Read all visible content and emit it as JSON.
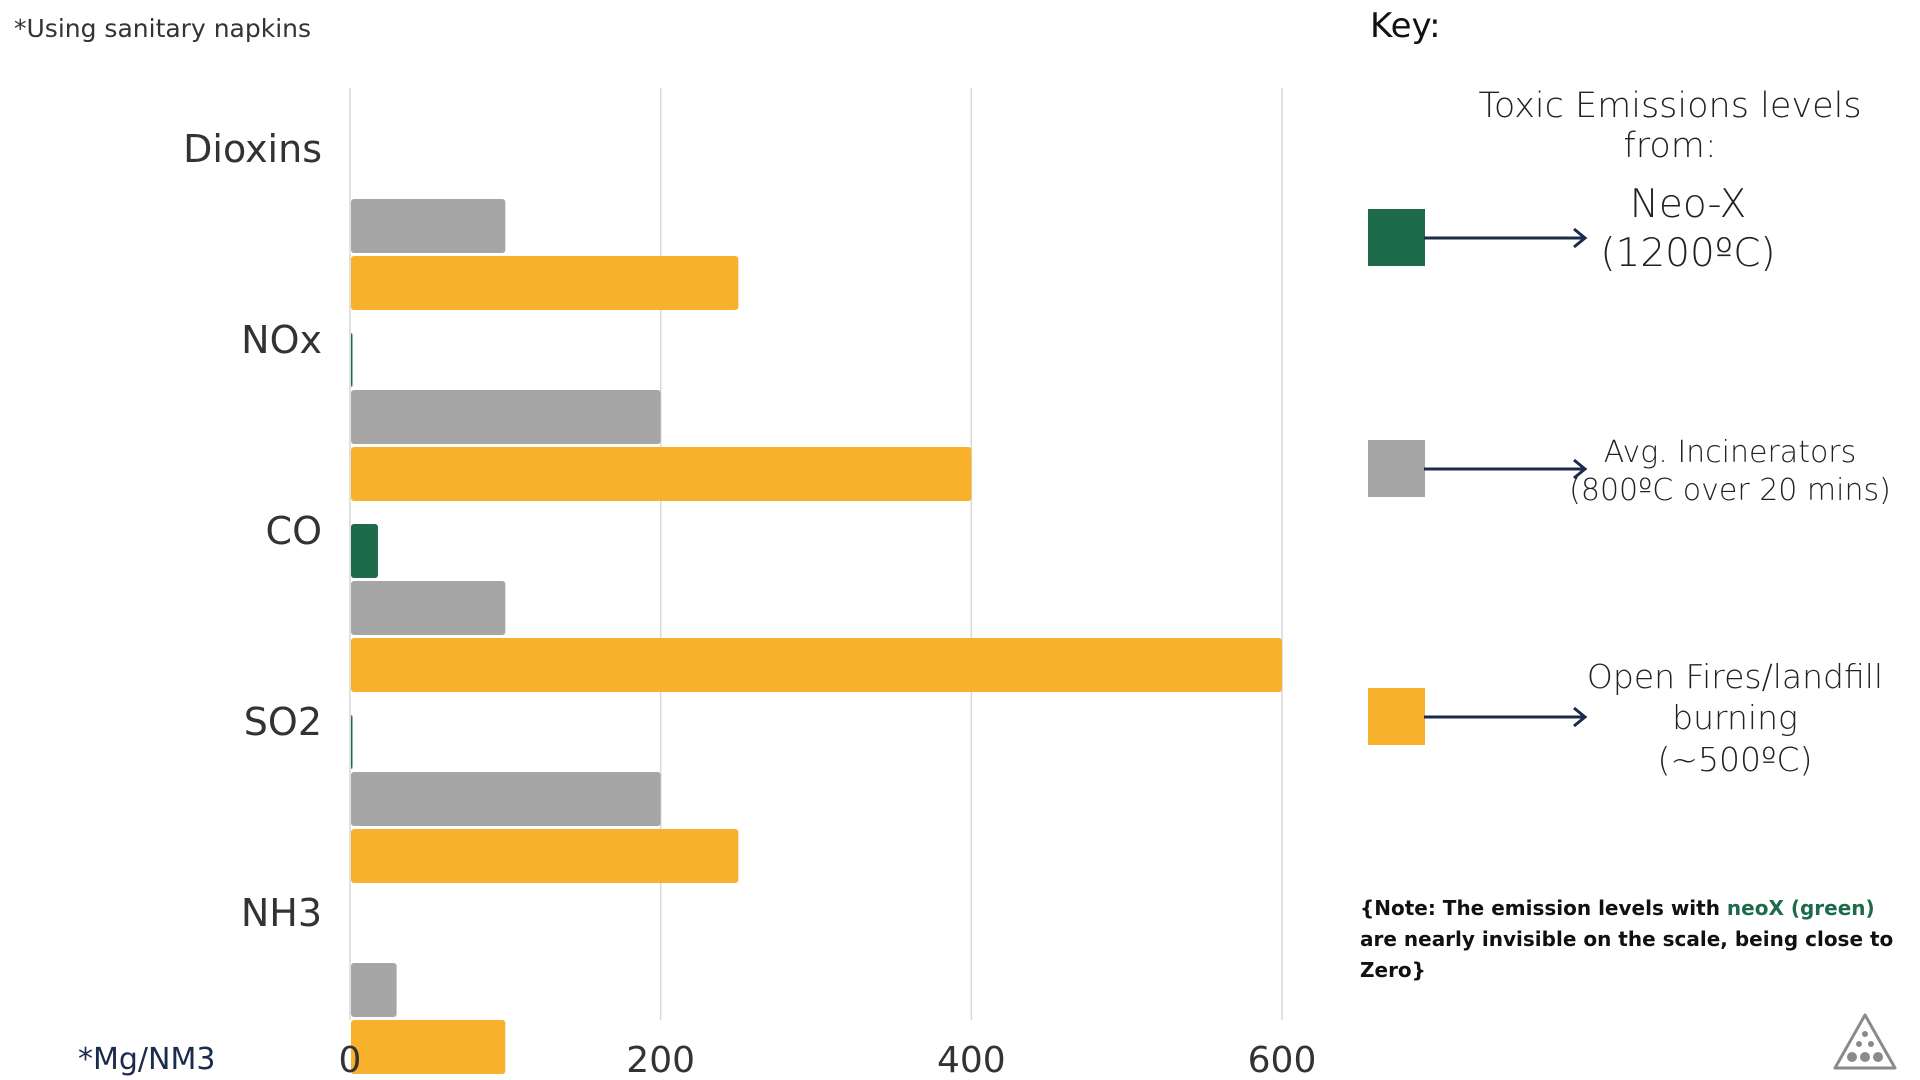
{
  "footnote": "*Using sanitary napkins",
  "unit_label": "*Mg/NM3",
  "chart_data": {
    "type": "bar",
    "orientation": "horizontal",
    "categories": [
      "Dioxins",
      "NOx",
      "CO",
      "SO2",
      "NH3"
    ],
    "series": [
      {
        "name": "Neo-X (1200ºC)",
        "color": "#1e6b4b",
        "values": [
          0,
          0.5,
          18,
          1,
          0
        ]
      },
      {
        "name": "Avg. Incinerators (800ºC over 20 mins)",
        "color": "#a6a6a6",
        "values": [
          100,
          200,
          100,
          200,
          30
        ]
      },
      {
        "name": "Open Fires/landfill burning (~500ºC)",
        "color": "#f8b12c",
        "values": [
          250,
          400,
          600,
          250,
          100
        ]
      }
    ],
    "xlim": [
      0,
      600
    ],
    "x_ticks": [
      "0",
      "200",
      "400",
      "600"
    ],
    "grid": true,
    "legend_position": "right"
  },
  "key": {
    "title": "Key:",
    "subtitle": "Toxic Emissions levels from:",
    "items": [
      {
        "color": "#1e6b4b",
        "lines": [
          "Neo-X",
          "(1200ºC)"
        ]
      },
      {
        "color": "#a6a6a6",
        "lines": [
          "Avg. Incinerators",
          "(800ºC over 20 mins)"
        ]
      },
      {
        "color": "#f8b12c",
        "lines": [
          "Open Fires/landfill",
          "burning",
          "(~500ºC)"
        ]
      }
    ]
  },
  "note": {
    "part1": "{Note: The emission levels with ",
    "highlight": "neoX (green)",
    "part2": " are nearly invisible on the scale, being close to Zero}"
  },
  "colors": {
    "neo_x": "#1e6b4b",
    "incinerator": "#a6a6a6",
    "open_fire": "#f8b12c",
    "arrow": "#1b2b4b"
  },
  "logo_icon": "triangle-dots-logo"
}
